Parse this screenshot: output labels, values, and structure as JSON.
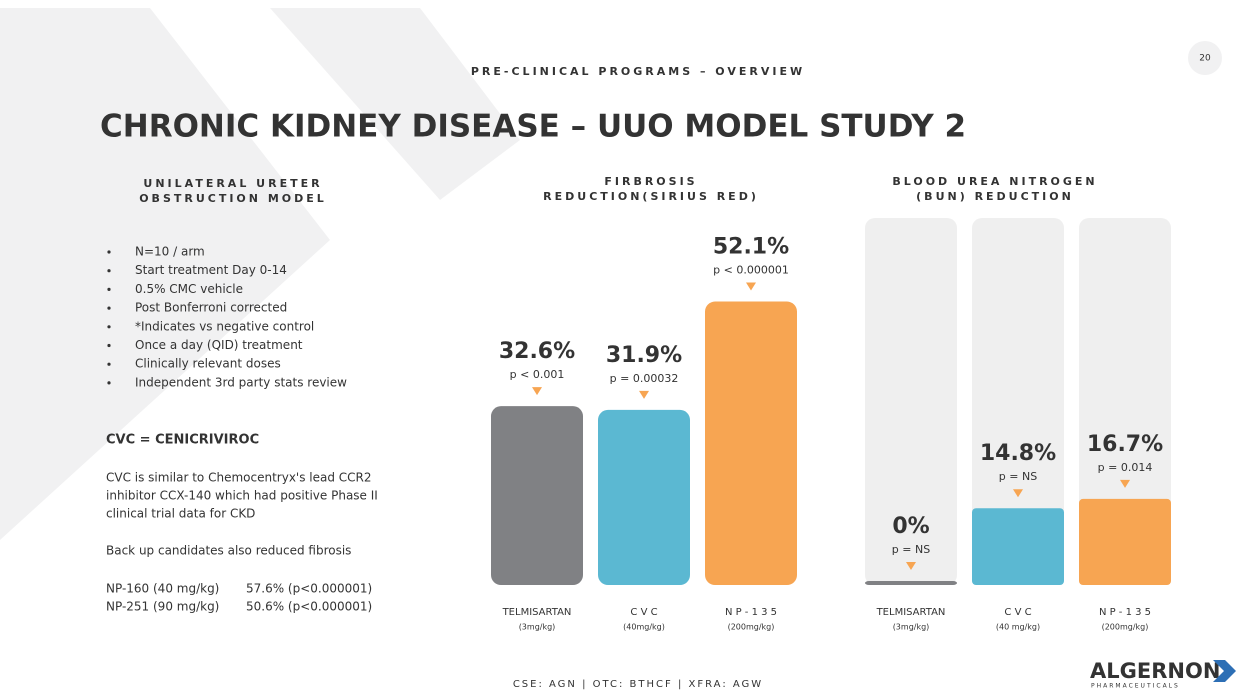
{
  "header": {
    "section": "PRE-CLINICAL PROGRAMS – OVERVIEW",
    "page": "20",
    "title": "CHRONIC KIDNEY DISEASE – UUO MODEL STUDY 2"
  },
  "left": {
    "heading": [
      "UNILATERAL URETER",
      "OBSTRUCTION MODEL"
    ],
    "bullets": [
      "N=10 / arm",
      "Start treatment Day 0-14",
      "0.5% CMC vehicle",
      "Post Bonferroni corrected",
      "*Indicates vs negative control",
      "Once a day (QID) treatment",
      "Clinically relevant doses",
      "Independent 3rd party stats review"
    ],
    "cvc_heading": "CVC = CENICRIVIROC",
    "cvc_text": [
      "CVC is similar to Chemocentryx's lead CCR2",
      "inhibitor CCX-140 which had positive Phase II",
      "clinical trial data for CKD"
    ],
    "backup": "Back up candidates also reduced fibrosis",
    "backup_rows": [
      [
        "NP-160 (40 mg/kg)",
        "57.6% (p<0.000001)"
      ],
      [
        "NP-251 (90 mg/kg)",
        "50.6% (p<0.000001)"
      ]
    ]
  },
  "chart_data": [
    {
      "type": "bar",
      "title": [
        "FIRBROSIS",
        "REDUCTION(SIRIUS RED)"
      ],
      "categories": [
        "TELMISARTAN",
        "C V C",
        "N P - 1 3 5"
      ],
      "doses": [
        "(3mg/kg)",
        "(40mg/kg)",
        "(200mg/kg)"
      ],
      "values": [
        32.6,
        31.9,
        52.1
      ],
      "value_labels": [
        "32.6%",
        "31.9%",
        "52.1%"
      ],
      "annotations": [
        "p < 0.001",
        "p = 0.00032",
        "p < 0.000001"
      ],
      "colors": [
        "#808184",
        "#5bb8d2",
        "#f7a552"
      ],
      "ylim": [
        0,
        55
      ]
    },
    {
      "type": "bar",
      "title": [
        "BLOOD UREA NITROGEN",
        "(BUN) REDUCTION"
      ],
      "categories": [
        "TELMISARTAN",
        "C V C",
        "N P - 1 3 5"
      ],
      "doses": [
        "(3mg/kg)",
        "(40 mg/kg)",
        "(200mg/kg)"
      ],
      "values": [
        0,
        14.8,
        16.7
      ],
      "value_labels": [
        "0%",
        "14.8%",
        "16.7%"
      ],
      "annotations": [
        "p = NS",
        "p = NS",
        "p = 0.014"
      ],
      "colors": [
        "#808184",
        "#5bb8d2",
        "#f7a552"
      ],
      "ylim": [
        0,
        60
      ]
    }
  ],
  "footer": {
    "tickers": "CSE: AGN  |  OTC: BTHCF  |  XFRA: AGW",
    "logo": "ALGERNON",
    "logo_sub": "PHARMACEUTICALS"
  }
}
